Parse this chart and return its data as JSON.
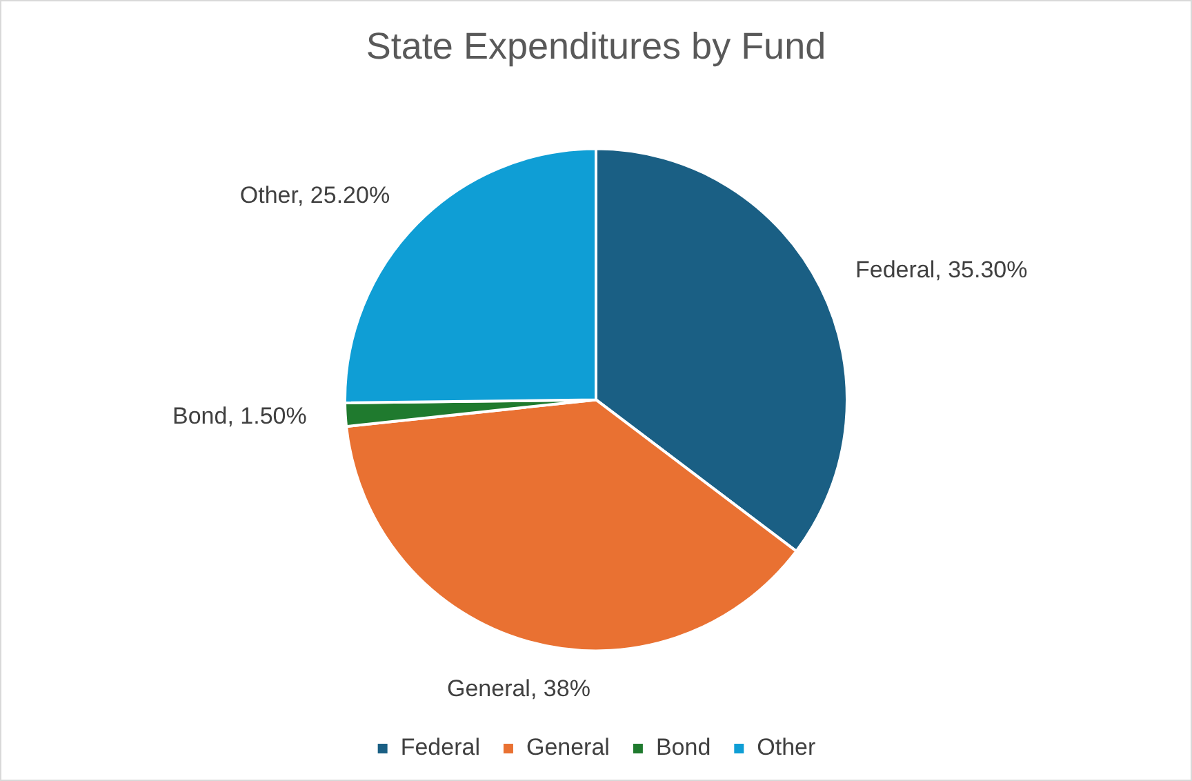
{
  "chart_data": {
    "type": "pie",
    "title": "State Expenditures by Fund",
    "categories": [
      "Federal",
      "General",
      "Bond",
      "Other"
    ],
    "values": [
      35.3,
      38,
      1.5,
      25.2
    ],
    "colors": [
      "#1a5f84",
      "#e97132",
      "#1f7a2e",
      "#0f9ed5"
    ],
    "value_labels": [
      "Federal, 35.30%",
      "General, 38%",
      "Bond, 1.50%",
      "Other, 25.20%"
    ],
    "legend": "bottom"
  }
}
